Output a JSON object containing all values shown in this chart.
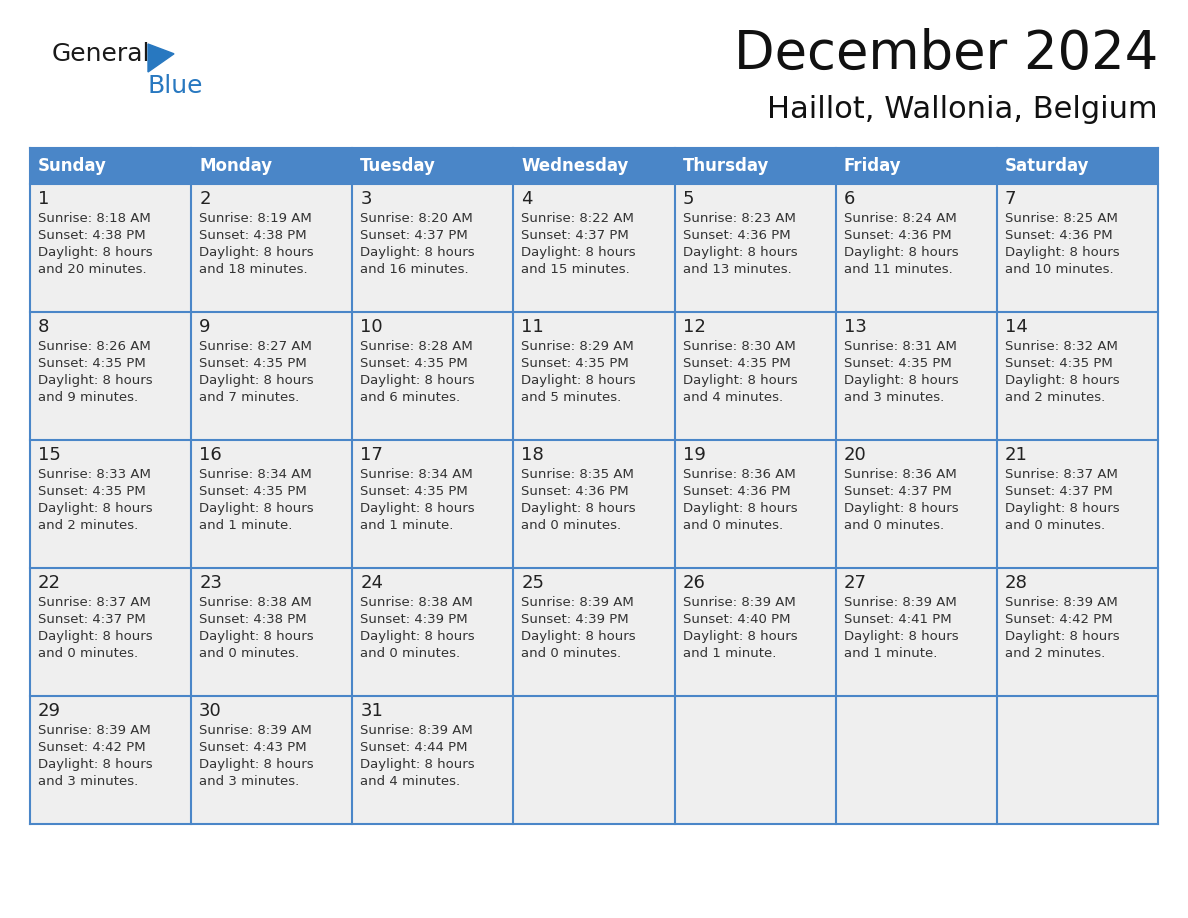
{
  "title": "December 2024",
  "subtitle": "Haillot, Wallonia, Belgium",
  "header_color": "#4A86C8",
  "header_text_color": "#FFFFFF",
  "cell_bg_color": "#EFEFEF",
  "border_color": "#4A86C8",
  "text_color": "#333333",
  "day_number_color": "#222222",
  "day_headers": [
    "Sunday",
    "Monday",
    "Tuesday",
    "Wednesday",
    "Thursday",
    "Friday",
    "Saturday"
  ],
  "days": [
    {
      "day": 1,
      "col": 0,
      "row": 0,
      "sunrise": "8:18 AM",
      "sunset": "4:38 PM",
      "daylight2": "and 20 minutes."
    },
    {
      "day": 2,
      "col": 1,
      "row": 0,
      "sunrise": "8:19 AM",
      "sunset": "4:38 PM",
      "daylight2": "and 18 minutes."
    },
    {
      "day": 3,
      "col": 2,
      "row": 0,
      "sunrise": "8:20 AM",
      "sunset": "4:37 PM",
      "daylight2": "and 16 minutes."
    },
    {
      "day": 4,
      "col": 3,
      "row": 0,
      "sunrise": "8:22 AM",
      "sunset": "4:37 PM",
      "daylight2": "and 15 minutes."
    },
    {
      "day": 5,
      "col": 4,
      "row": 0,
      "sunrise": "8:23 AM",
      "sunset": "4:36 PM",
      "daylight2": "and 13 minutes."
    },
    {
      "day": 6,
      "col": 5,
      "row": 0,
      "sunrise": "8:24 AM",
      "sunset": "4:36 PM",
      "daylight2": "and 11 minutes."
    },
    {
      "day": 7,
      "col": 6,
      "row": 0,
      "sunrise": "8:25 AM",
      "sunset": "4:36 PM",
      "daylight2": "and 10 minutes."
    },
    {
      "day": 8,
      "col": 0,
      "row": 1,
      "sunrise": "8:26 AM",
      "sunset": "4:35 PM",
      "daylight2": "and 9 minutes."
    },
    {
      "day": 9,
      "col": 1,
      "row": 1,
      "sunrise": "8:27 AM",
      "sunset": "4:35 PM",
      "daylight2": "and 7 minutes."
    },
    {
      "day": 10,
      "col": 2,
      "row": 1,
      "sunrise": "8:28 AM",
      "sunset": "4:35 PM",
      "daylight2": "and 6 minutes."
    },
    {
      "day": 11,
      "col": 3,
      "row": 1,
      "sunrise": "8:29 AM",
      "sunset": "4:35 PM",
      "daylight2": "and 5 minutes."
    },
    {
      "day": 12,
      "col": 4,
      "row": 1,
      "sunrise": "8:30 AM",
      "sunset": "4:35 PM",
      "daylight2": "and 4 minutes."
    },
    {
      "day": 13,
      "col": 5,
      "row": 1,
      "sunrise": "8:31 AM",
      "sunset": "4:35 PM",
      "daylight2": "and 3 minutes."
    },
    {
      "day": 14,
      "col": 6,
      "row": 1,
      "sunrise": "8:32 AM",
      "sunset": "4:35 PM",
      "daylight2": "and 2 minutes."
    },
    {
      "day": 15,
      "col": 0,
      "row": 2,
      "sunrise": "8:33 AM",
      "sunset": "4:35 PM",
      "daylight2": "and 2 minutes."
    },
    {
      "day": 16,
      "col": 1,
      "row": 2,
      "sunrise": "8:34 AM",
      "sunset": "4:35 PM",
      "daylight2": "and 1 minute."
    },
    {
      "day": 17,
      "col": 2,
      "row": 2,
      "sunrise": "8:34 AM",
      "sunset": "4:35 PM",
      "daylight2": "and 1 minute."
    },
    {
      "day": 18,
      "col": 3,
      "row": 2,
      "sunrise": "8:35 AM",
      "sunset": "4:36 PM",
      "daylight2": "and 0 minutes."
    },
    {
      "day": 19,
      "col": 4,
      "row": 2,
      "sunrise": "8:36 AM",
      "sunset": "4:36 PM",
      "daylight2": "and 0 minutes."
    },
    {
      "day": 20,
      "col": 5,
      "row": 2,
      "sunrise": "8:36 AM",
      "sunset": "4:37 PM",
      "daylight2": "and 0 minutes."
    },
    {
      "day": 21,
      "col": 6,
      "row": 2,
      "sunrise": "8:37 AM",
      "sunset": "4:37 PM",
      "daylight2": "and 0 minutes."
    },
    {
      "day": 22,
      "col": 0,
      "row": 3,
      "sunrise": "8:37 AM",
      "sunset": "4:37 PM",
      "daylight2": "and 0 minutes."
    },
    {
      "day": 23,
      "col": 1,
      "row": 3,
      "sunrise": "8:38 AM",
      "sunset": "4:38 PM",
      "daylight2": "and 0 minutes."
    },
    {
      "day": 24,
      "col": 2,
      "row": 3,
      "sunrise": "8:38 AM",
      "sunset": "4:39 PM",
      "daylight2": "and 0 minutes."
    },
    {
      "day": 25,
      "col": 3,
      "row": 3,
      "sunrise": "8:39 AM",
      "sunset": "4:39 PM",
      "daylight2": "and 0 minutes."
    },
    {
      "day": 26,
      "col": 4,
      "row": 3,
      "sunrise": "8:39 AM",
      "sunset": "4:40 PM",
      "daylight2": "and 1 minute."
    },
    {
      "day": 27,
      "col": 5,
      "row": 3,
      "sunrise": "8:39 AM",
      "sunset": "4:41 PM",
      "daylight2": "and 1 minute."
    },
    {
      "day": 28,
      "col": 6,
      "row": 3,
      "sunrise": "8:39 AM",
      "sunset": "4:42 PM",
      "daylight2": "and 2 minutes."
    },
    {
      "day": 29,
      "col": 0,
      "row": 4,
      "sunrise": "8:39 AM",
      "sunset": "4:42 PM",
      "daylight2": "and 3 minutes."
    },
    {
      "day": 30,
      "col": 1,
      "row": 4,
      "sunrise": "8:39 AM",
      "sunset": "4:43 PM",
      "daylight2": "and 3 minutes."
    },
    {
      "day": 31,
      "col": 2,
      "row": 4,
      "sunrise": "8:39 AM",
      "sunset": "4:44 PM",
      "daylight2": "and 4 minutes."
    }
  ],
  "num_rows": 5,
  "logo_text1": "General",
  "logo_text2": "Blue",
  "logo_color1": "#1a1a1a",
  "logo_color2": "#2878C0",
  "triangle_color": "#2878C0"
}
